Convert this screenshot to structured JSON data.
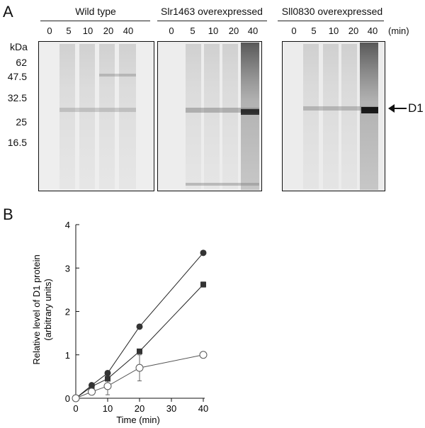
{
  "panel_a": {
    "letter": "A",
    "groups": [
      {
        "label": "Wild type",
        "lanes": [
          "0",
          "5",
          "10",
          "20",
          "40"
        ]
      },
      {
        "label": "Slr1463 overexpressed",
        "lanes": [
          "0",
          "5",
          "10",
          "20",
          "40"
        ]
      },
      {
        "label": "Sll0830 overexpressed",
        "lanes": [
          "0",
          "5",
          "10",
          "20",
          "40"
        ]
      }
    ],
    "unit_label": "(min)",
    "kda_label": "kDa",
    "markers": [
      "62",
      "47.5",
      "32.5",
      "25",
      "16.5"
    ],
    "band_label": "D1"
  },
  "panel_b": {
    "letter": "B",
    "chart_data": {
      "type": "line",
      "xlabel": "Time (min)",
      "ylabel": "Relative level of D1 protein (arbitrary units)",
      "ylabel_lines": [
        "Relative level of D1 protein",
        "(arbitrary units)"
      ],
      "xlim": [
        0,
        40
      ],
      "ylim": [
        0,
        4
      ],
      "xticks": [
        0,
        10,
        20,
        30,
        40
      ],
      "yticks": [
        0,
        1,
        2,
        3,
        4
      ],
      "x": [
        0,
        5,
        10,
        20,
        40
      ],
      "series": [
        {
          "marker": "filled-circle",
          "values": [
            0.0,
            0.3,
            0.58,
            1.65,
            3.35
          ],
          "err": [
            0,
            0,
            0,
            0,
            0
          ]
        },
        {
          "marker": "filled-square",
          "values": [
            0.0,
            0.27,
            0.45,
            1.08,
            2.62
          ],
          "err": [
            0,
            0.03,
            0.04,
            0.05,
            0.06
          ]
        },
        {
          "marker": "open-circle",
          "values": [
            0.0,
            0.15,
            0.28,
            0.7,
            1.0
          ],
          "err": [
            0,
            0.05,
            0.2,
            0.3,
            0
          ]
        }
      ]
    }
  }
}
